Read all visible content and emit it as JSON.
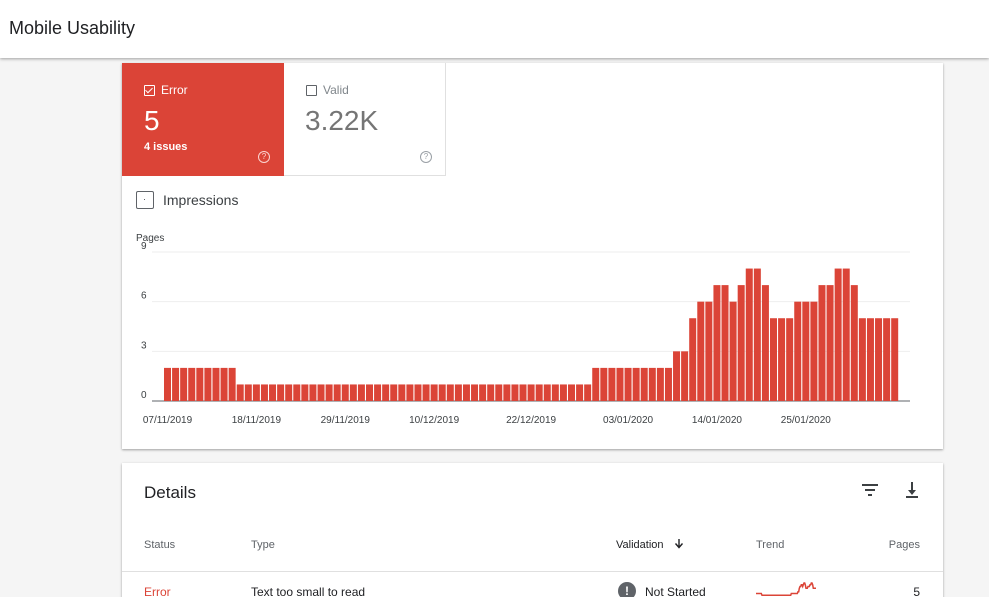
{
  "header": {
    "title": "Mobile Usability"
  },
  "summary": {
    "error": {
      "label": "Error",
      "value": "5",
      "issues": "4 issues",
      "help": "?"
    },
    "valid": {
      "label": "Valid",
      "value": "3.22K",
      "help": "?"
    }
  },
  "impressions_label": "Impressions",
  "colors": {
    "error": "#db4437",
    "grid": "#eeeeee",
    "axis": "#5f6368"
  },
  "chart_data": {
    "type": "bar",
    "ylabel": "Pages",
    "ylim": [
      0,
      9
    ],
    "yticks": [
      0,
      3,
      6,
      9
    ],
    "x_tick_labels": [
      "07/11/2019",
      "18/11/2019",
      "29/11/2019",
      "10/12/2019",
      "22/12/2019",
      "03/01/2020",
      "14/01/2020",
      "25/01/2020"
    ],
    "x_tick_index": [
      0,
      11,
      22,
      33,
      45,
      57,
      68,
      79
    ],
    "series": [
      {
        "name": "Error",
        "values": [
          2,
          2,
          2,
          2,
          2,
          2,
          2,
          2,
          2,
          1,
          1,
          1,
          1,
          1,
          1,
          1,
          1,
          1,
          1,
          1,
          1,
          1,
          1,
          1,
          1,
          1,
          1,
          1,
          1,
          1,
          1,
          1,
          1,
          1,
          1,
          1,
          1,
          1,
          1,
          1,
          1,
          1,
          1,
          1,
          1,
          1,
          1,
          1,
          1,
          1,
          1,
          1,
          1,
          2,
          2,
          2,
          2,
          2,
          2,
          2,
          2,
          2,
          2,
          3,
          3,
          5,
          6,
          6,
          7,
          7,
          6,
          7,
          8,
          8,
          7,
          5,
          5,
          5,
          6,
          6,
          6,
          7,
          7,
          8,
          8,
          7,
          5,
          5,
          5,
          5,
          5
        ]
      }
    ]
  },
  "details": {
    "title": "Details",
    "columns": {
      "status": "Status",
      "type": "Type",
      "validation": "Validation",
      "trend": "Trend",
      "pages": "Pages"
    },
    "rows": [
      {
        "status": "Error",
        "type": "Text too small to read",
        "validation": "Not Started",
        "pages": "5",
        "validation_icon": "!"
      }
    ]
  }
}
